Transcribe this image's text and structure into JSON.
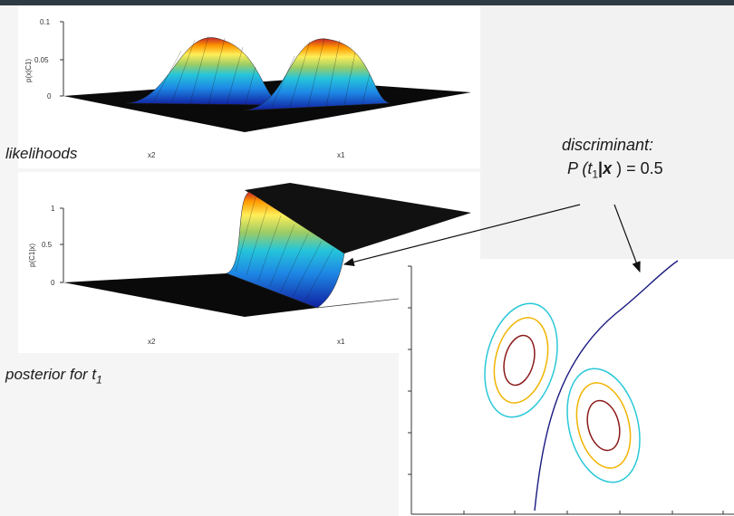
{
  "likelihood_plot": {
    "ylabel": "p(x|C1)",
    "yticks": [
      "0.1",
      "0.05",
      "0"
    ],
    "xlabel1": "x2",
    "xlabel2": "x1"
  },
  "posterior_plot": {
    "ylabel": "p(C1|x)",
    "yticks": [
      "1",
      "0.5",
      "0"
    ],
    "xlabel1": "x2",
    "xlabel2": "x1"
  },
  "captions": {
    "likelihoods": "likelihoods",
    "posterior_prefix": "posterior for t",
    "posterior_sub": "1"
  },
  "discriminant": {
    "title": "discriminant:",
    "eq_prefix": "P (t",
    "eq_sub": "1",
    "eq_bar": "|",
    "eq_var": "x",
    "eq_suffix": " ) = 0.5"
  },
  "colors": {
    "inner_contour": "#8b1a1a",
    "middle_contour": "#f0b400",
    "outer_contour": "#2ac8d8",
    "boundary": "#1a1a80"
  }
}
